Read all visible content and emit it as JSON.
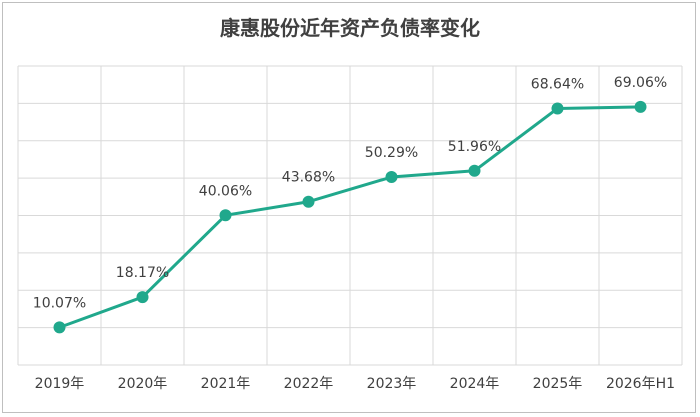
{
  "chart_data": {
    "type": "line",
    "title": "康惠股份近年资产负债率变化",
    "categories": [
      "2019年",
      "2020年",
      "2021年",
      "2022年",
      "2023年",
      "2024年",
      "2025年",
      "2026年H1"
    ],
    "series": [
      {
        "values": [
          10.07,
          18.17,
          40.06,
          43.68,
          50.29,
          51.96,
          68.64,
          69.06
        ],
        "labels": [
          "10.07%",
          "18.17%",
          "40.06%",
          "43.68%",
          "50.29%",
          "51.96%",
          "68.64%",
          "69.06%"
        ]
      }
    ],
    "ylim": [
      0,
      80
    ],
    "grid": true,
    "legend": "none",
    "line_color": "#20a88c",
    "grid_color": "#d9d9d9"
  }
}
